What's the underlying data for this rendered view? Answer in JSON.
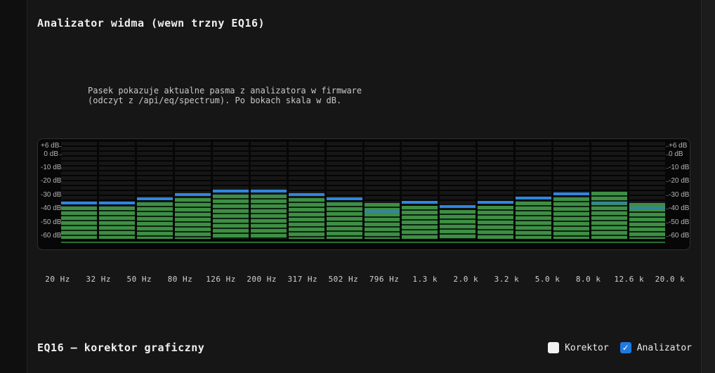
{
  "header": {
    "title": "Analizator widma (wewn trzny EQ16)"
  },
  "description": "Pasek pokazuje aktualne pasma z analizatora w firmware\n(odczyt z /api/eq/spectrum). Po bokach skala w dB.",
  "section_eq": {
    "title": "EQ16 – korektor graficzny"
  },
  "controls": {
    "korektor": {
      "label": "Korektor",
      "checked": false
    },
    "analizator": {
      "label": "Analizator",
      "checked": true
    }
  },
  "colors": {
    "bar_green": "#3E8E44",
    "bar_green_gap": "#0c2410",
    "indicator_blue": "#2E86E0",
    "indicator_teal": "#35859A",
    "baseline_green": "#2B7030",
    "checkbox_accent": "#1F7AE0"
  },
  "chart_data": {
    "type": "bar",
    "title": "Analizator widma (wewn trzny EQ16)",
    "categories": [
      "20 Hz",
      "32 Hz",
      "50 Hz",
      "80 Hz",
      "126 Hz",
      "200 Hz",
      "317 Hz",
      "502 Hz",
      "796 Hz",
      "1.3 k",
      "2.0 k",
      "3.2 k",
      "5.0 k",
      "8.0 k",
      "12.6 k",
      "20.0 k"
    ],
    "series": [
      {
        "name": "level_db_green",
        "values": [
          -38.5,
          -38.5,
          -35,
          -32,
          -29.5,
          -29.5,
          -32,
          -35,
          -36,
          -38,
          -41,
          -38,
          -34.5,
          -31.5,
          -27.5,
          -36
        ]
      },
      {
        "name": "peak_db_blue",
        "values": [
          -37,
          -37,
          -33.5,
          -30.5,
          -28,
          -28,
          -30.5,
          -33.5,
          -41,
          -36.5,
          -39.5,
          -36.5,
          -33,
          -30,
          -34.5,
          -38.5
        ]
      }
    ],
    "xlabel": "",
    "ylabel": "dB",
    "ylim": [
      -60,
      6
    ],
    "yticks": [
      {
        "label": "+6 dB",
        "value": 6
      },
      {
        "label": "0 dB",
        "value": 0
      },
      {
        "label": "-10 dB",
        "value": -10
      },
      {
        "label": "-20 dB",
        "value": -20
      },
      {
        "label": "-30 dB",
        "value": -30
      },
      {
        "label": "-40 dB",
        "value": -40
      },
      {
        "label": "-50 dB",
        "value": -50
      },
      {
        "label": "-60 dB",
        "value": -60
      }
    ],
    "legend_position": "none",
    "grid": "led-segments",
    "style": "LED segment meter, green level bars with blue peak indicator line, dB scale on both sides"
  }
}
